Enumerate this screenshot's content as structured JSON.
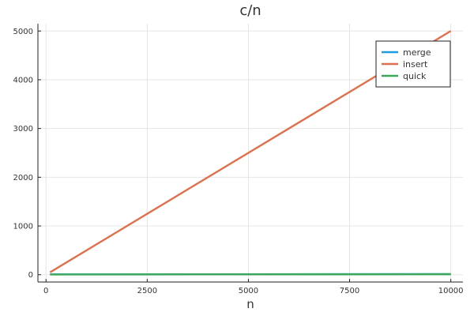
{
  "chart_data": {
    "type": "line",
    "title": "c/n",
    "xlabel": "n",
    "ylabel": "",
    "xlim": [
      -200,
      10300
    ],
    "ylim": [
      -150,
      5150
    ],
    "xticks": [
      0,
      2500,
      5000,
      7500,
      10000
    ],
    "yticks": [
      0,
      1000,
      2000,
      3000,
      4000,
      5000
    ],
    "xtick_labels": [
      "0",
      "2500",
      "5000",
      "7500",
      "10000"
    ],
    "ytick_labels": [
      "0",
      "1000",
      "2000",
      "3000",
      "4000",
      "5000"
    ],
    "grid": true,
    "legend_position": "top-right",
    "series": [
      {
        "name": "merge",
        "color": "#1f9be0",
        "x": [
          100,
          10000
        ],
        "y": [
          7,
          13
        ]
      },
      {
        "name": "insert",
        "color": "#e0704b",
        "x": [
          100,
          10000
        ],
        "y": [
          50,
          5000
        ]
      },
      {
        "name": "quick",
        "color": "#3ca75b",
        "x": [
          100,
          10000
        ],
        "y": [
          5,
          10
        ]
      }
    ]
  }
}
